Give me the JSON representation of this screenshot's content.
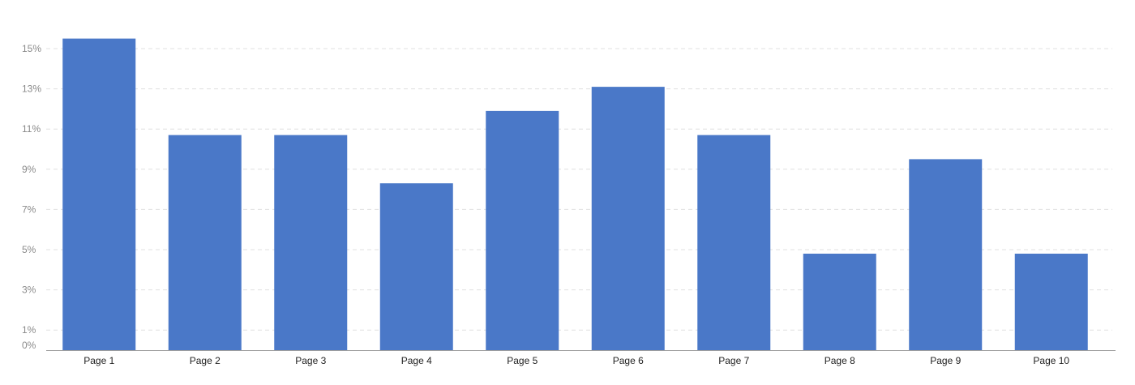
{
  "chart_data": {
    "type": "bar",
    "categories": [
      "Page 1",
      "Page 2",
      "Page 3",
      "Page 4",
      "Page 5",
      "Page 6",
      "Page 7",
      "Page 8",
      "Page 9",
      "Page 10"
    ],
    "values": [
      15.5,
      10.7,
      10.7,
      8.3,
      11.9,
      13.1,
      10.7,
      4.8,
      9.5,
      4.8
    ],
    "y_ticks": [
      "0%",
      "1%",
      "3%",
      "5%",
      "7%",
      "9%",
      "11%",
      "13%",
      "15%"
    ],
    "y_tick_values": [
      0,
      1,
      3,
      5,
      7,
      9,
      11,
      13,
      15
    ],
    "ylim": [
      0,
      15.5
    ],
    "grid": true,
    "legend": "none",
    "bar_color": "#4a78c8",
    "title": "",
    "xlabel": "",
    "ylabel": ""
  }
}
